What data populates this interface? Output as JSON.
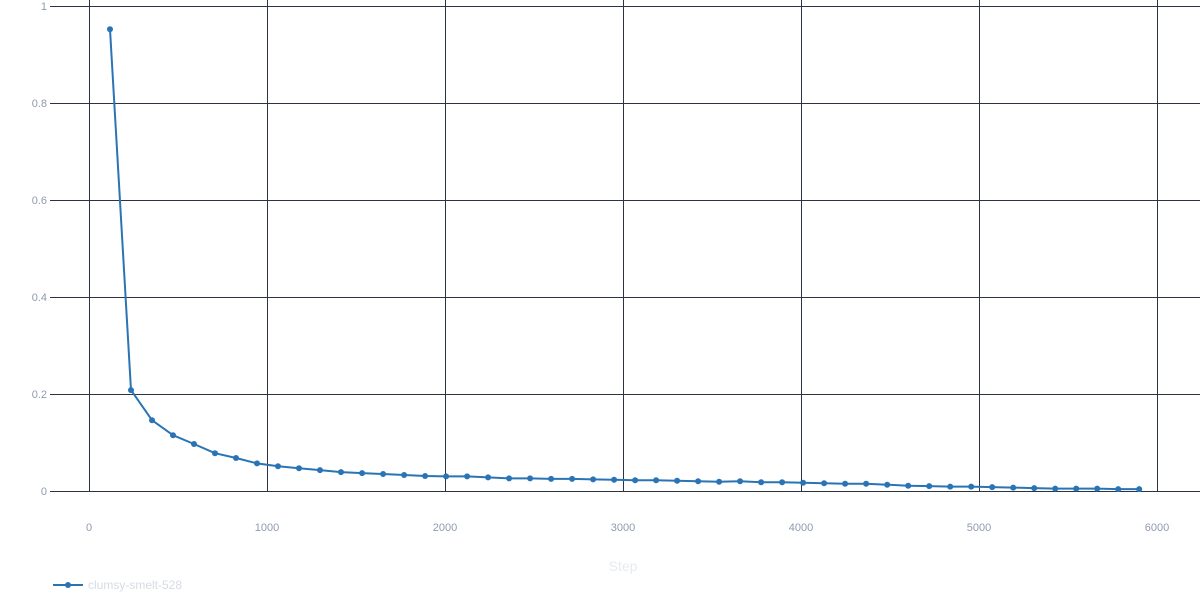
{
  "chart_data": {
    "type": "line",
    "title": "",
    "xlabel": "Step",
    "ylabel": "",
    "xlim": [
      0,
      6000
    ],
    "ylim": [
      0,
      1
    ],
    "x_ticks": [
      0,
      1000,
      2000,
      3000,
      4000,
      5000,
      6000
    ],
    "x_tick_labels": [
      "0",
      "1000",
      "2000",
      "3000",
      "4000",
      "5000",
      "6000"
    ],
    "y_ticks": [
      0,
      0.2,
      0.4,
      0.6,
      0.8,
      1
    ],
    "y_tick_labels": [
      "0",
      "0.2",
      "0.4",
      "0.6",
      "0.8",
      "1"
    ],
    "grid": true,
    "legend_position": "bottom-left",
    "series": [
      {
        "name": "clumsy-smelt-528",
        "color": "#2a74b5",
        "x": [
          118,
          236,
          354,
          472,
          590,
          708,
          826,
          944,
          1062,
          1180,
          1298,
          1416,
          1534,
          1652,
          1770,
          1888,
          2006,
          2124,
          2242,
          2360,
          2478,
          2596,
          2714,
          2832,
          2950,
          3068,
          3186,
          3304,
          3422,
          3540,
          3658,
          3776,
          3894,
          4012,
          4130,
          4248,
          4366,
          4484,
          4602,
          4720,
          4838,
          4956,
          5074,
          5192,
          5310,
          5428,
          5546,
          5664,
          5782,
          5900
        ],
        "y": [
          0.952,
          0.208,
          0.146,
          0.115,
          0.097,
          0.078,
          0.068,
          0.057,
          0.051,
          0.047,
          0.043,
          0.039,
          0.037,
          0.035,
          0.033,
          0.031,
          0.03,
          0.03,
          0.028,
          0.026,
          0.026,
          0.025,
          0.025,
          0.024,
          0.023,
          0.022,
          0.022,
          0.021,
          0.02,
          0.019,
          0.02,
          0.018,
          0.018,
          0.017,
          0.016,
          0.015,
          0.015,
          0.013,
          0.011,
          0.01,
          0.009,
          0.009,
          0.008,
          0.007,
          0.006,
          0.005,
          0.005,
          0.005,
          0.004,
          0.004
        ]
      }
    ]
  }
}
